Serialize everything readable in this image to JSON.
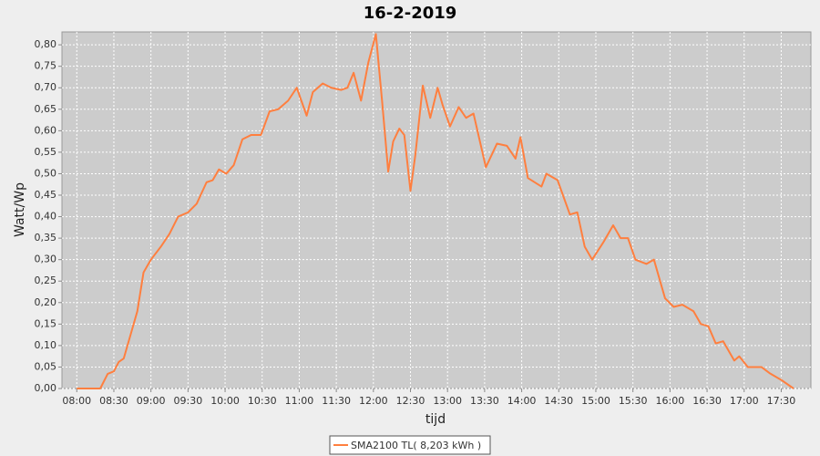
{
  "chart_data": {
    "type": "line",
    "title": "16-2-2019",
    "x_label": "tijd",
    "y_label": "Watt/Wp",
    "x": [
      "08:00",
      "08:19",
      "08:25",
      "08:30",
      "08:34",
      "08:38",
      "08:43",
      "08:49",
      "08:54",
      "09:00",
      "09:08",
      "09:15",
      "09:22",
      "09:30",
      "09:37",
      "09:45",
      "09:50",
      "09:55",
      "10:01",
      "10:07",
      "10:14",
      "10:21",
      "10:29",
      "10:36",
      "10:43",
      "10:51",
      "10:58",
      "11:06",
      "11:11",
      "11:19",
      "11:26",
      "11:34",
      "11:39",
      "11:44",
      "11:50",
      "11:56",
      "12:02",
      "12:07",
      "12:12",
      "12:16",
      "12:21",
      "12:25",
      "12:30",
      "12:34",
      "12:40",
      "12:46",
      "12:52",
      "12:56",
      "13:02",
      "13:09",
      "13:15",
      "13:21",
      "13:31",
      "13:40",
      "13:48",
      "13:55",
      "13:59",
      "14:05",
      "14:16",
      "14:20",
      "14:29",
      "14:39",
      "14:45",
      "14:51",
      "14:57",
      "15:06",
      "15:14",
      "15:20",
      "15:26",
      "15:32",
      "15:41",
      "15:47",
      "15:56",
      "16:03",
      "16:10",
      "16:19",
      "16:25",
      "16:31",
      "16:37",
      "16:43",
      "16:52",
      "16:56",
      "17:03",
      "17:14",
      "17:21",
      "17:30",
      "17:40"
    ],
    "series": [
      {
        "name": "SMA2100 TL( 8,203 kWh )",
        "color": "#ff7f3f",
        "values": [
          0,
          0,
          0.034,
          0.04,
          0.062,
          0.07,
          0.12,
          0.18,
          0.27,
          0.3,
          0.33,
          0.36,
          0.4,
          0.41,
          0.43,
          0.48,
          0.485,
          0.51,
          0.5,
          0.52,
          0.58,
          0.59,
          0.59,
          0.645,
          0.65,
          0.67,
          0.7,
          0.635,
          0.69,
          0.71,
          0.7,
          0.695,
          0.7,
          0.735,
          0.67,
          0.76,
          0.825,
          0.67,
          0.505,
          0.575,
          0.605,
          0.59,
          0.46,
          0.545,
          0.705,
          0.63,
          0.7,
          0.66,
          0.61,
          0.655,
          0.63,
          0.64,
          0.515,
          0.57,
          0.565,
          0.535,
          0.585,
          0.49,
          0.47,
          0.5,
          0.485,
          0.405,
          0.41,
          0.33,
          0.3,
          0.34,
          0.38,
          0.35,
          0.35,
          0.3,
          0.29,
          0.3,
          0.21,
          0.19,
          0.195,
          0.18,
          0.15,
          0.145,
          0.105,
          0.11,
          0.065,
          0.075,
          0.05,
          0.05,
          0.035,
          0.02,
          0
        ]
      }
    ],
    "xlim": [
      "07:48",
      "17:54"
    ],
    "xticks": [
      "08:00",
      "08:30",
      "09:00",
      "09:30",
      "10:00",
      "10:30",
      "11:00",
      "11:30",
      "12:00",
      "12:30",
      "13:00",
      "13:30",
      "14:00",
      "14:30",
      "15:00",
      "15:30",
      "16:00",
      "16:30",
      "17:00",
      "17:30"
    ],
    "ylim": [
      0,
      0.83
    ],
    "yticks": [
      {
        "value": 0,
        "label": "0,00"
      },
      {
        "value": 0.05,
        "label": "0,05"
      },
      {
        "value": 0.1,
        "label": "0,10"
      },
      {
        "value": 0.15,
        "label": "0,15"
      },
      {
        "value": 0.2,
        "label": "0,20"
      },
      {
        "value": 0.25,
        "label": "0,25"
      },
      {
        "value": 0.3,
        "label": "0,30"
      },
      {
        "value": 0.35,
        "label": "0,35"
      },
      {
        "value": 0.4,
        "label": "0,40"
      },
      {
        "value": 0.45,
        "label": "0,45"
      },
      {
        "value": 0.5,
        "label": "0,50"
      },
      {
        "value": 0.55,
        "label": "0,55"
      },
      {
        "value": 0.6,
        "label": "0,60"
      },
      {
        "value": 0.65,
        "label": "0,65"
      },
      {
        "value": 0.7,
        "label": "0,70"
      },
      {
        "value": 0.75,
        "label": "0,75"
      },
      {
        "value": 0.8,
        "label": "0,80"
      }
    ],
    "grid": true,
    "legend": "bottom"
  }
}
